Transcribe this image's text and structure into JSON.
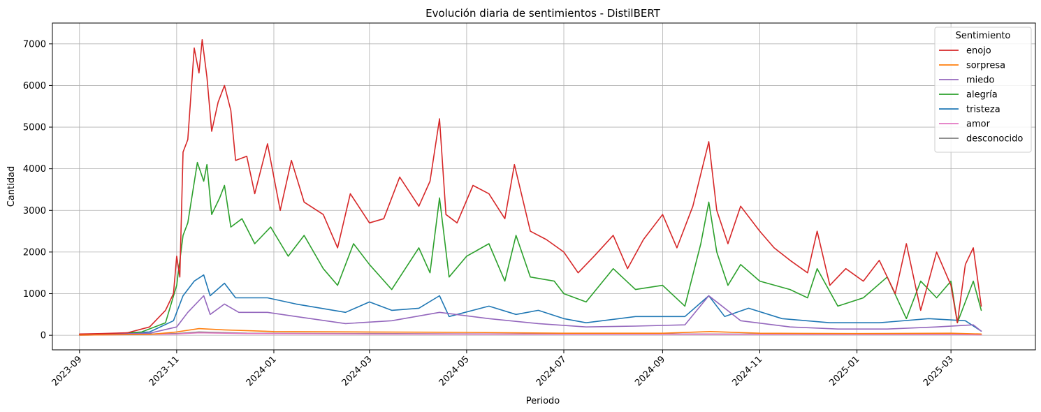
{
  "chart_data": {
    "type": "line",
    "title": "Evolución diaria de sentimientos - DistilBERT",
    "xlabel": "Periodo",
    "ylabel": "Cantidad",
    "xlim": [
      "2023-08-15",
      "2025-04-23"
    ],
    "ylim": [
      -350,
      7500
    ],
    "grid": true,
    "legend": {
      "title": "Sentimiento",
      "placement": "top-right"
    },
    "x_ticks": [
      "2023-09",
      "2023-11",
      "2024-01",
      "2024-03",
      "2024-05",
      "2024-07",
      "2024-09",
      "2024-11",
      "2025-01",
      "2025-03"
    ],
    "y_ticks": [
      0,
      1000,
      2000,
      3000,
      4000,
      5000,
      6000,
      7000
    ],
    "series": [
      {
        "name": "enojo",
        "color": "#d62728",
        "points": [
          [
            "2023-09-01",
            30
          ],
          [
            "2023-09-15",
            40
          ],
          [
            "2023-10-01",
            60
          ],
          [
            "2023-10-15",
            200
          ],
          [
            "2023-10-25",
            600
          ],
          [
            "2023-10-30",
            1000
          ],
          [
            "2023-11-01",
            1900
          ],
          [
            "2023-11-03",
            1400
          ],
          [
            "2023-11-05",
            4400
          ],
          [
            "2023-11-08",
            4700
          ],
          [
            "2023-11-12",
            6900
          ],
          [
            "2023-11-15",
            6300
          ],
          [
            "2023-11-17",
            7100
          ],
          [
            "2023-11-20",
            6200
          ],
          [
            "2023-11-23",
            4900
          ],
          [
            "2023-11-27",
            5600
          ],
          [
            "2023-12-01",
            6000
          ],
          [
            "2023-12-05",
            5400
          ],
          [
            "2023-12-08",
            4200
          ],
          [
            "2023-12-15",
            4300
          ],
          [
            "2023-12-20",
            3400
          ],
          [
            "2023-12-28",
            4600
          ],
          [
            "2024-01-05",
            3000
          ],
          [
            "2024-01-12",
            4200
          ],
          [
            "2024-01-20",
            3200
          ],
          [
            "2024-02-01",
            2900
          ],
          [
            "2024-02-10",
            2100
          ],
          [
            "2024-02-18",
            3400
          ],
          [
            "2024-03-01",
            2700
          ],
          [
            "2024-03-10",
            2800
          ],
          [
            "2024-03-20",
            3800
          ],
          [
            "2024-04-01",
            3100
          ],
          [
            "2024-04-08",
            3700
          ],
          [
            "2024-04-14",
            5200
          ],
          [
            "2024-04-18",
            2900
          ],
          [
            "2024-04-25",
            2700
          ],
          [
            "2024-05-05",
            3600
          ],
          [
            "2024-05-15",
            3400
          ],
          [
            "2024-05-25",
            2800
          ],
          [
            "2024-05-31",
            4100
          ],
          [
            "2024-06-10",
            2500
          ],
          [
            "2024-06-20",
            2300
          ],
          [
            "2024-07-01",
            2000
          ],
          [
            "2024-07-10",
            1500
          ],
          [
            "2024-07-20",
            1900
          ],
          [
            "2024-08-01",
            2400
          ],
          [
            "2024-08-10",
            1600
          ],
          [
            "2024-08-20",
            2300
          ],
          [
            "2024-09-01",
            2900
          ],
          [
            "2024-09-10",
            2100
          ],
          [
            "2024-09-20",
            3100
          ],
          [
            "2024-09-30",
            4650
          ],
          [
            "2024-10-05",
            3000
          ],
          [
            "2024-10-12",
            2200
          ],
          [
            "2024-10-20",
            3100
          ],
          [
            "2024-11-01",
            2500
          ],
          [
            "2024-11-10",
            2100
          ],
          [
            "2024-11-20",
            1800
          ],
          [
            "2024-12-01",
            1500
          ],
          [
            "2024-12-07",
            2500
          ],
          [
            "2024-12-15",
            1200
          ],
          [
            "2024-12-25",
            1600
          ],
          [
            "2025-01-05",
            1300
          ],
          [
            "2025-01-15",
            1800
          ],
          [
            "2025-01-25",
            1000
          ],
          [
            "2025-02-01",
            2200
          ],
          [
            "2025-02-10",
            600
          ],
          [
            "2025-02-20",
            2000
          ],
          [
            "2025-03-01",
            1200
          ],
          [
            "2025-03-05",
            300
          ],
          [
            "2025-03-10",
            1700
          ],
          [
            "2025-03-15",
            2100
          ],
          [
            "2025-03-20",
            700
          ]
        ]
      },
      {
        "name": "sorpresa",
        "color": "#ff7f0e",
        "points": [
          [
            "2023-09-01",
            5
          ],
          [
            "2023-10-15",
            20
          ],
          [
            "2023-11-01",
            80
          ],
          [
            "2023-11-15",
            160
          ],
          [
            "2023-12-01",
            130
          ],
          [
            "2024-01-01",
            90
          ],
          [
            "2024-03-01",
            80
          ],
          [
            "2024-05-01",
            70
          ],
          [
            "2024-07-01",
            50
          ],
          [
            "2024-09-01",
            50
          ],
          [
            "2024-10-01",
            90
          ],
          [
            "2024-11-01",
            50
          ],
          [
            "2025-01-01",
            40
          ],
          [
            "2025-03-01",
            50
          ],
          [
            "2025-03-20",
            30
          ]
        ]
      },
      {
        "name": "miedo",
        "color": "#9467bd",
        "points": [
          [
            "2023-09-01",
            5
          ],
          [
            "2023-10-15",
            50
          ],
          [
            "2023-11-01",
            200
          ],
          [
            "2023-11-08",
            550
          ],
          [
            "2023-11-18",
            950
          ],
          [
            "2023-11-22",
            500
          ],
          [
            "2023-12-01",
            750
          ],
          [
            "2023-12-10",
            550
          ],
          [
            "2023-12-28",
            550
          ],
          [
            "2024-01-15",
            450
          ],
          [
            "2024-02-15",
            280
          ],
          [
            "2024-03-15",
            350
          ],
          [
            "2024-04-14",
            550
          ],
          [
            "2024-05-15",
            400
          ],
          [
            "2024-06-15",
            280
          ],
          [
            "2024-07-15",
            200
          ],
          [
            "2024-08-15",
            220
          ],
          [
            "2024-09-15",
            250
          ],
          [
            "2024-09-30",
            950
          ],
          [
            "2024-10-20",
            350
          ],
          [
            "2024-11-20",
            200
          ],
          [
            "2024-12-20",
            150
          ],
          [
            "2025-01-20",
            150
          ],
          [
            "2025-02-20",
            200
          ],
          [
            "2025-03-15",
            250
          ],
          [
            "2025-03-20",
            100
          ]
        ]
      },
      {
        "name": "alegría",
        "color": "#2ca02c",
        "points": [
          [
            "2023-09-01",
            20
          ],
          [
            "2023-09-20",
            30
          ],
          [
            "2023-10-10",
            80
          ],
          [
            "2023-10-25",
            300
          ],
          [
            "2023-11-01",
            1200
          ],
          [
            "2023-11-05",
            2400
          ],
          [
            "2023-11-08",
            2700
          ],
          [
            "2023-11-14",
            4150
          ],
          [
            "2023-11-18",
            3700
          ],
          [
            "2023-11-20",
            4100
          ],
          [
            "2023-11-23",
            2900
          ],
          [
            "2023-11-28",
            3300
          ],
          [
            "2023-12-01",
            3600
          ],
          [
            "2023-12-05",
            2600
          ],
          [
            "2023-12-12",
            2800
          ],
          [
            "2023-12-20",
            2200
          ],
          [
            "2023-12-30",
            2600
          ],
          [
            "2024-01-10",
            1900
          ],
          [
            "2024-01-20",
            2400
          ],
          [
            "2024-02-01",
            1600
          ],
          [
            "2024-02-10",
            1200
          ],
          [
            "2024-02-20",
            2200
          ],
          [
            "2024-03-01",
            1700
          ],
          [
            "2024-03-15",
            1100
          ],
          [
            "2024-04-01",
            2100
          ],
          [
            "2024-04-08",
            1500
          ],
          [
            "2024-04-14",
            3300
          ],
          [
            "2024-04-20",
            1400
          ],
          [
            "2024-05-01",
            1900
          ],
          [
            "2024-05-15",
            2200
          ],
          [
            "2024-05-25",
            1300
          ],
          [
            "2024-06-01",
            2400
          ],
          [
            "2024-06-10",
            1400
          ],
          [
            "2024-06-25",
            1300
          ],
          [
            "2024-07-01",
            1000
          ],
          [
            "2024-07-15",
            800
          ],
          [
            "2024-08-01",
            1600
          ],
          [
            "2024-08-15",
            1100
          ],
          [
            "2024-09-01",
            1200
          ],
          [
            "2024-09-15",
            700
          ],
          [
            "2024-09-25",
            2200
          ],
          [
            "2024-09-30",
            3200
          ],
          [
            "2024-10-05",
            2000
          ],
          [
            "2024-10-12",
            1200
          ],
          [
            "2024-10-20",
            1700
          ],
          [
            "2024-11-01",
            1300
          ],
          [
            "2024-11-20",
            1100
          ],
          [
            "2024-12-01",
            900
          ],
          [
            "2024-12-07",
            1600
          ],
          [
            "2024-12-20",
            700
          ],
          [
            "2025-01-05",
            900
          ],
          [
            "2025-01-20",
            1400
          ],
          [
            "2025-02-01",
            400
          ],
          [
            "2025-02-10",
            1300
          ],
          [
            "2025-02-20",
            900
          ],
          [
            "2025-03-01",
            1300
          ],
          [
            "2025-03-05",
            300
          ],
          [
            "2025-03-15",
            1300
          ],
          [
            "2025-03-20",
            600
          ]
        ]
      },
      {
        "name": "tristeza",
        "color": "#1f77b4",
        "points": [
          [
            "2023-09-01",
            10
          ],
          [
            "2023-10-15",
            80
          ],
          [
            "2023-10-30",
            350
          ],
          [
            "2023-11-05",
            950
          ],
          [
            "2023-11-12",
            1300
          ],
          [
            "2023-11-18",
            1450
          ],
          [
            "2023-11-22",
            950
          ],
          [
            "2023-12-01",
            1250
          ],
          [
            "2023-12-08",
            900
          ],
          [
            "2023-12-28",
            900
          ],
          [
            "2024-01-15",
            750
          ],
          [
            "2024-02-15",
            550
          ],
          [
            "2024-03-01",
            800
          ],
          [
            "2024-03-15",
            600
          ],
          [
            "2024-04-01",
            650
          ],
          [
            "2024-04-14",
            950
          ],
          [
            "2024-04-20",
            450
          ],
          [
            "2024-05-15",
            700
          ],
          [
            "2024-06-01",
            500
          ],
          [
            "2024-06-15",
            600
          ],
          [
            "2024-07-01",
            400
          ],
          [
            "2024-07-15",
            300
          ],
          [
            "2024-08-15",
            450
          ],
          [
            "2024-09-15",
            450
          ],
          [
            "2024-09-30",
            950
          ],
          [
            "2024-10-10",
            450
          ],
          [
            "2024-10-25",
            650
          ],
          [
            "2024-11-15",
            400
          ],
          [
            "2024-12-15",
            300
          ],
          [
            "2025-01-15",
            300
          ],
          [
            "2025-02-15",
            400
          ],
          [
            "2025-03-10",
            350
          ],
          [
            "2025-03-20",
            100
          ]
        ]
      },
      {
        "name": "amor",
        "color": "#e377c2",
        "points": [
          [
            "2023-09-01",
            2
          ],
          [
            "2023-11-01",
            30
          ],
          [
            "2023-11-15",
            60
          ],
          [
            "2023-12-15",
            40
          ],
          [
            "2024-03-01",
            30
          ],
          [
            "2024-06-01",
            25
          ],
          [
            "2024-09-01",
            25
          ],
          [
            "2024-12-01",
            20
          ],
          [
            "2025-03-01",
            20
          ],
          [
            "2025-03-20",
            10
          ]
        ]
      },
      {
        "name": "desconocido",
        "color": "#7f7f7f",
        "points": [
          [
            "2023-09-01",
            3
          ],
          [
            "2023-11-01",
            40
          ],
          [
            "2023-11-15",
            80
          ],
          [
            "2023-12-15",
            50
          ],
          [
            "2024-03-01",
            40
          ],
          [
            "2024-06-01",
            30
          ],
          [
            "2024-09-01",
            30
          ],
          [
            "2024-12-01",
            25
          ],
          [
            "2025-03-01",
            25
          ],
          [
            "2025-03-20",
            10
          ]
        ]
      }
    ]
  }
}
